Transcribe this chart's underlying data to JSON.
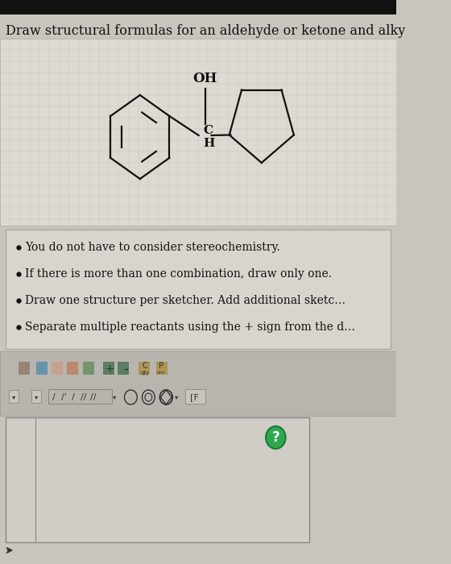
{
  "title": "Draw structural formulas for an aldehyde or ketone and alky",
  "bg_color": "#c8c5be",
  "paper_color": "#dedad3",
  "bullet_points": [
    "You do not have to consider stereochemistry.",
    "If there is more than one combination, draw only one.",
    "Draw one structure per sketcher. Add additional sketc…",
    "Separate multiple reactants using the + sign from the d…"
  ],
  "text_color": "#111111",
  "toolbar_color": "#b8b5ae",
  "title_fontsize": 11.5,
  "bullet_fontsize": 10,
  "mol_color": "#111111",
  "grid_color": "#c5c2bb",
  "box_edge_color": "#aaa9a0",
  "sketcher_bg": "#d0cdc6",
  "green_color": "#2ea84e"
}
